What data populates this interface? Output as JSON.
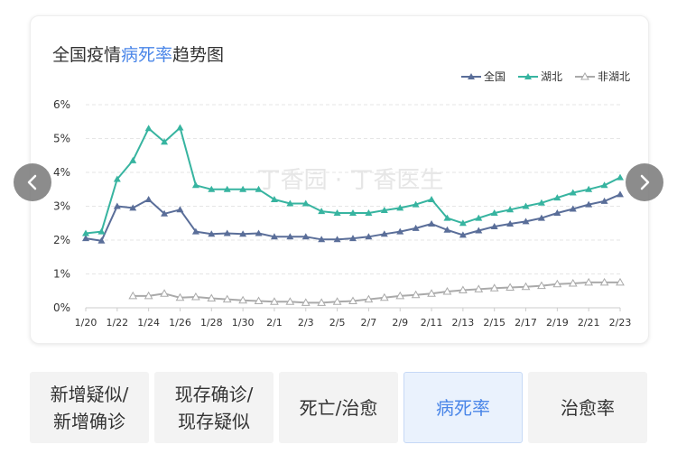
{
  "title": {
    "prefix": "全国疫情",
    "highlight": "病死率",
    "suffix": "趋势图"
  },
  "legend": [
    {
      "label": "全国",
      "color": "#5a6e99",
      "marker": "filled-triangle"
    },
    {
      "label": "湖北",
      "color": "#37b4a0",
      "marker": "filled-triangle"
    },
    {
      "label": "非湖北",
      "color": "#aaaaaa",
      "marker": "hollow-triangle"
    }
  ],
  "watermark": "丁香园 · 丁香医生",
  "tabs": [
    {
      "line1": "新增疑似/",
      "line2": "新增确诊",
      "active": false
    },
    {
      "line1": "现存确诊/",
      "line2": "现存疑似",
      "active": false
    },
    {
      "line1": "死亡/治愈",
      "line2": "",
      "active": false
    },
    {
      "line1": "病死率",
      "line2": "",
      "active": true
    },
    {
      "line1": "治愈率",
      "line2": "",
      "active": false
    }
  ],
  "nav": {
    "prev_icon": "chevron-left-icon",
    "next_icon": "chevron-right-icon"
  },
  "chart_data": {
    "type": "line",
    "ylim": [
      0,
      6
    ],
    "yticks": [
      "0%",
      "1%",
      "2%",
      "3%",
      "4%",
      "5%",
      "6%"
    ],
    "x": [
      "1/20",
      "1/21",
      "1/22",
      "1/23",
      "1/24",
      "1/25",
      "1/26",
      "1/27",
      "1/28",
      "1/29",
      "1/30",
      "1/31",
      "2/1",
      "2/2",
      "2/3",
      "2/4",
      "2/5",
      "2/6",
      "2/7",
      "2/8",
      "2/9",
      "2/10",
      "2/11",
      "2/12",
      "2/13",
      "2/14",
      "2/15",
      "2/16",
      "2/17",
      "2/18",
      "2/19",
      "2/20",
      "2/21",
      "2/22",
      "2/23"
    ],
    "xtick_labels": [
      "1/20",
      "1/22",
      "1/24",
      "1/26",
      "1/28",
      "1/30",
      "2/1",
      "2/3",
      "2/5",
      "2/7",
      "2/9",
      "2/11",
      "2/13",
      "2/15",
      "2/17",
      "2/19",
      "2/21",
      "2/23"
    ],
    "grid": true,
    "legend_position": "top-right",
    "series": [
      {
        "name": "全国",
        "color": "#5a6e99",
        "marker": "filled",
        "values": [
          2.05,
          1.98,
          3.0,
          2.95,
          3.2,
          2.78,
          2.9,
          2.25,
          2.18,
          2.2,
          2.18,
          2.2,
          2.1,
          2.1,
          2.1,
          2.02,
          2.02,
          2.05,
          2.1,
          2.18,
          2.25,
          2.35,
          2.48,
          2.3,
          2.15,
          2.28,
          2.4,
          2.48,
          2.55,
          2.65,
          2.8,
          2.92,
          3.05,
          3.15,
          3.35
        ]
      },
      {
        "name": "湖北",
        "color": "#37b4a0",
        "marker": "filled",
        "values": [
          2.2,
          2.25,
          3.8,
          4.35,
          5.3,
          4.9,
          5.32,
          3.62,
          3.5,
          3.5,
          3.5,
          3.5,
          3.2,
          3.08,
          3.08,
          2.85,
          2.8,
          2.8,
          2.8,
          2.88,
          2.95,
          3.05,
          3.2,
          2.65,
          2.5,
          2.65,
          2.8,
          2.9,
          3.0,
          3.1,
          3.25,
          3.4,
          3.5,
          3.62,
          3.85
        ]
      },
      {
        "name": "非湖北",
        "color": "#aaaaaa",
        "marker": "hollow",
        "values": [
          null,
          null,
          null,
          0.35,
          0.35,
          0.42,
          0.3,
          0.32,
          0.28,
          0.25,
          0.22,
          0.2,
          0.18,
          0.18,
          0.15,
          0.15,
          0.18,
          0.2,
          0.25,
          0.3,
          0.35,
          0.38,
          0.42,
          0.48,
          0.52,
          0.55,
          0.58,
          0.6,
          0.62,
          0.65,
          0.7,
          0.72,
          0.75,
          0.75,
          0.75
        ]
      }
    ]
  }
}
